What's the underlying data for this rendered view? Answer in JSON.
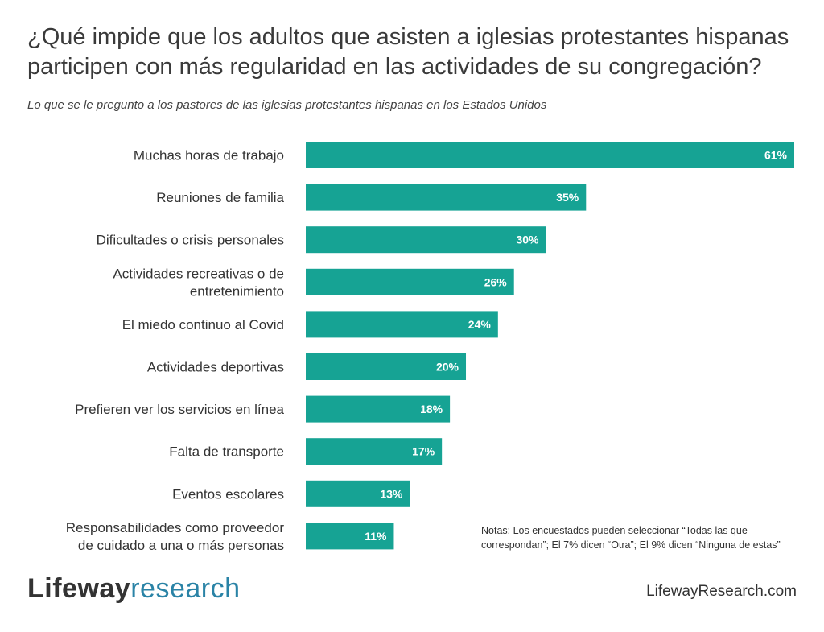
{
  "title": "¿Qué impide que los adultos que asisten a iglesias protestantes hispanas participen con más regularidad en las actividades de su congregación?",
  "subtitle": "Lo que se le pregunto a los pastores de las iglesias protestantes hispanas en los Estados Unidos",
  "notes": "Notas: Los encuestados pueden seleccionar “Todas las que correspondan”; El 7% dicen “Otra”; El 9% dicen “Ninguna de estas”",
  "logo": {
    "part1": "Lifeway",
    "part2": "research"
  },
  "website": "LifewayResearch.com",
  "colors": {
    "bar": "#16a394",
    "label_text": "#333333",
    "value_text": "#ffffff",
    "logo_accent": "#2a83a6"
  },
  "chart_data": {
    "type": "bar",
    "orientation": "horizontal",
    "categories": [
      [
        "Muchas horas de trabajo"
      ],
      [
        "Reuniones de familia"
      ],
      [
        "Dificultades o crisis personales"
      ],
      [
        "Actividades recreativas o de",
        "entretenimiento"
      ],
      [
        "El miedo continuo al Covid"
      ],
      [
        "Actividades deportivas"
      ],
      [
        "Prefieren ver los servicios en línea"
      ],
      [
        "Falta de transporte"
      ],
      [
        "Eventos escolares"
      ],
      [
        "Responsabilidades como proveedor",
        "de cuidado a una o más personas"
      ]
    ],
    "values": [
      61,
      35,
      30,
      26,
      24,
      20,
      18,
      17,
      13,
      11
    ],
    "value_labels": [
      "61%",
      "35%",
      "30%",
      "26%",
      "24%",
      "20%",
      "18%",
      "17%",
      "13%",
      "11%"
    ],
    "xlim": [
      0,
      61
    ],
    "grid": false,
    "legend": "none"
  }
}
